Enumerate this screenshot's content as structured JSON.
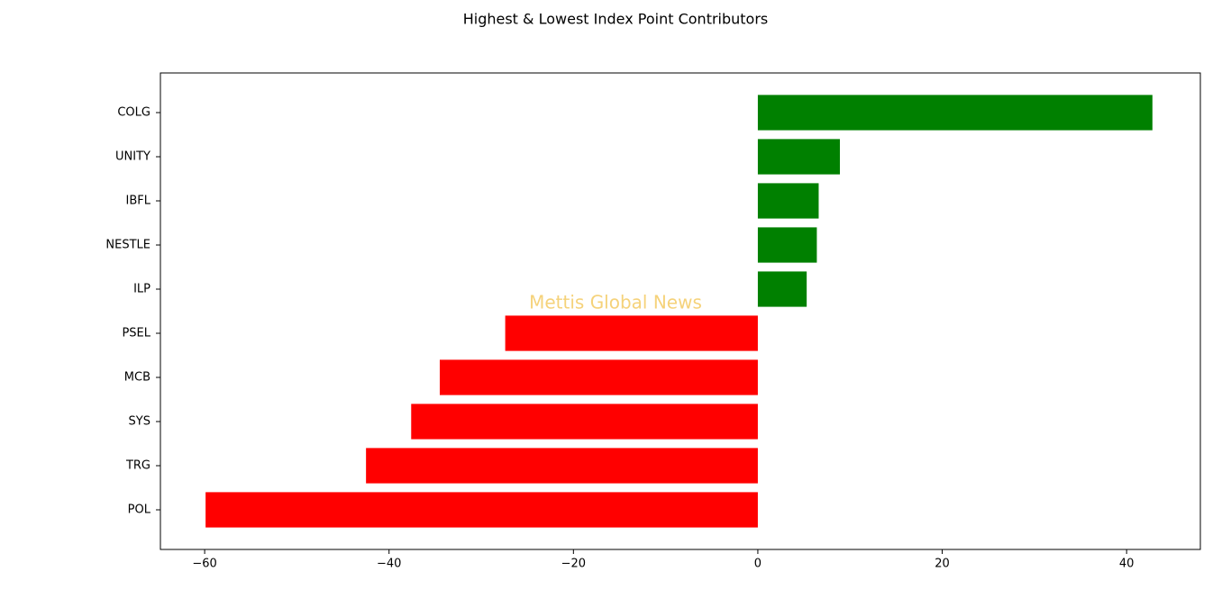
{
  "chart_data": {
    "type": "barh",
    "title": "Highest & Lowest Index Point Contributors",
    "annotation": "Mettis Global News",
    "categories": [
      "COLG",
      "UNITY",
      "IBFL",
      "NESTLE",
      "ILP",
      "PSEL",
      "MCB",
      "SYS",
      "TRG",
      "POL"
    ],
    "values": [
      42.8,
      8.9,
      6.6,
      6.4,
      5.3,
      -27.4,
      -34.5,
      -37.6,
      -42.5,
      -59.9
    ],
    "colors": [
      "#008000",
      "#008000",
      "#008000",
      "#008000",
      "#008000",
      "#ff0000",
      "#ff0000",
      "#ff0000",
      "#ff0000",
      "#ff0000"
    ],
    "xlim": [
      -64.8,
      48.0
    ],
    "xticks": [
      {
        "value": -60,
        "label": "−60"
      },
      {
        "value": -40,
        "label": "−40"
      },
      {
        "value": -20,
        "label": "−20"
      },
      0,
      20,
      40
    ]
  }
}
